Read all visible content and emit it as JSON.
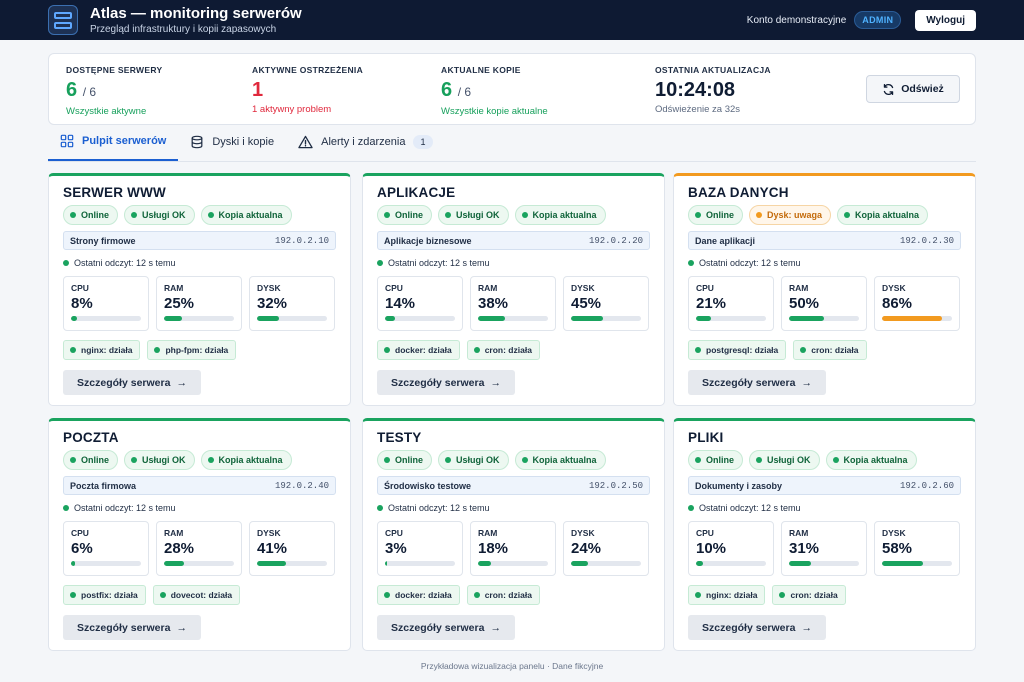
{
  "app": {
    "title": "Atlas — monitoring serwerów",
    "subtitle": "Przegląd infrastruktury i kopii zapasowych",
    "account": "Konto demonstracyjne",
    "role": "ADMIN",
    "logout": "Wyloguj"
  },
  "stats": {
    "servers": {
      "label": "DOSTĘPNE SERWERY",
      "value": "6",
      "of": "/ 6",
      "note": "Wszystkie aktywne"
    },
    "alerts": {
      "label": "AKTYWNE OSTRZEŻENIA",
      "value": "1",
      "note": "1 aktywny problem"
    },
    "backups": {
      "label": "AKTUALNE KOPIE",
      "value": "6",
      "of": "/ 6",
      "note": "Wszystkie kopie aktualne"
    },
    "update": {
      "label": "OSTATNIA AKTUALIZACJA",
      "value": "10:24:08",
      "note": "Odświeżenie za 32s"
    },
    "refresh": "Odśwież"
  },
  "tabs": [
    {
      "label": "Pulpit serwerów"
    },
    {
      "label": "Dyski i kopie"
    },
    {
      "label": "Alerty i zdarzenia",
      "count": "1"
    }
  ],
  "labels": {
    "cpu": "CPU",
    "ram": "RAM",
    "disk": "DYSK",
    "details": "Szczegóły serwera"
  },
  "servers": [
    {
      "name": "SERWER WWW",
      "status": "Online",
      "services": "Usługi OK",
      "backup": "Kopia aktualna",
      "role": "Strony firmowe",
      "ip": "192.0.2.10",
      "last_read": "Ostatni odczyt: 12 s temu",
      "cpu": 8,
      "ram": 25,
      "disk": 32,
      "cpu_t": "8%",
      "ram_t": "25%",
      "disk_t": "32%",
      "svc1": "nginx: działa",
      "svc2": "php-fpm: działa"
    },
    {
      "name": "APLIKACJE",
      "status": "Online",
      "services": "Usługi OK",
      "backup": "Kopia aktualna",
      "role": "Aplikacje biznesowe",
      "ip": "192.0.2.20",
      "last_read": "Ostatni odczyt: 12 s temu",
      "cpu": 14,
      "ram": 38,
      "disk": 45,
      "cpu_t": "14%",
      "ram_t": "38%",
      "disk_t": "45%",
      "svc1": "docker: działa",
      "svc2": "cron: działa"
    },
    {
      "name": "BAZA DANYCH",
      "status": "Online",
      "services": "Dysk: uwaga",
      "backup": "Kopia aktualna",
      "role": "Dane aplikacji",
      "ip": "192.0.2.30",
      "last_read": "Ostatni odczyt: 12 s temu",
      "cpu": 21,
      "ram": 50,
      "disk": 86,
      "cpu_t": "21%",
      "ram_t": "50%",
      "disk_t": "86%",
      "svc1": "postgresql: działa",
      "svc2": "cron: działa"
    },
    {
      "name": "POCZTA",
      "status": "Online",
      "services": "Usługi OK",
      "backup": "Kopia aktualna",
      "role": "Poczta firmowa",
      "ip": "192.0.2.40",
      "last_read": "Ostatni odczyt: 12 s temu",
      "cpu": 6,
      "ram": 28,
      "disk": 41,
      "cpu_t": "6%",
      "ram_t": "28%",
      "disk_t": "41%",
      "svc1": "postfix: działa",
      "svc2": "dovecot: działa"
    },
    {
      "name": "TESTY",
      "status": "Online",
      "services": "Usługi OK",
      "backup": "Kopia aktualna",
      "role": "Środowisko testowe",
      "ip": "192.0.2.50",
      "last_read": "Ostatni odczyt: 12 s temu",
      "cpu": 3,
      "ram": 18,
      "disk": 24,
      "cpu_t": "3%",
      "ram_t": "18%",
      "disk_t": "24%",
      "svc1": "docker: działa",
      "svc2": "cron: działa"
    },
    {
      "name": "PLIKI",
      "status": "Online",
      "services": "Usługi OK",
      "backup": "Kopia aktualna",
      "role": "Dokumenty i zasoby",
      "ip": "192.0.2.60",
      "last_read": "Ostatni odczyt: 12 s temu",
      "cpu": 10,
      "ram": 31,
      "disk": 58,
      "cpu_t": "10%",
      "ram_t": "31%",
      "disk_t": "58%",
      "svc1": "nginx: działa",
      "svc2": "cron: działa"
    }
  ],
  "footer": "Przykładowa wizualizacja panelu · Dane fikcyjne"
}
